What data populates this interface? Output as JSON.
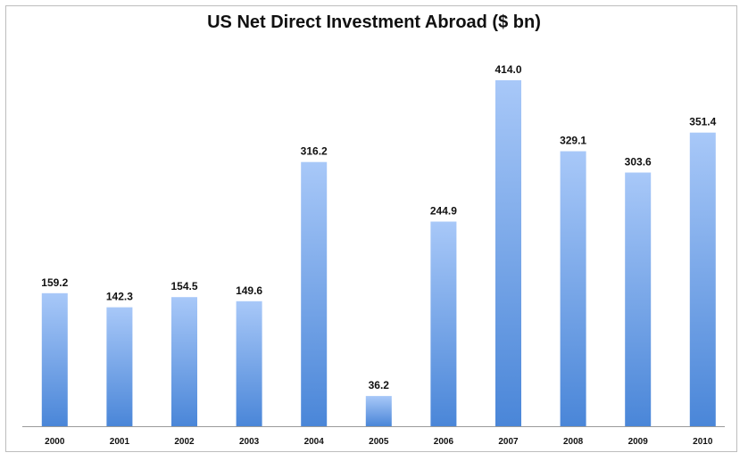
{
  "chart_data": {
    "type": "bar",
    "title": "US Net Direct Investment Abroad ($ bn)",
    "xlabel": "",
    "ylabel": "",
    "categories": [
      "2000",
      "2001",
      "2002",
      "2003",
      "2004",
      "2005",
      "2006",
      "2007",
      "2008",
      "2009",
      "2010"
    ],
    "values": [
      159.2,
      142.3,
      154.5,
      149.6,
      316.2,
      36.2,
      244.9,
      414.0,
      329.1,
      303.6,
      351.4
    ],
    "value_labels": [
      "159.2",
      "142.3",
      "154.5",
      "149.6",
      "316.2",
      "36.2",
      "244.9",
      "414.0",
      "329.1",
      "303.6",
      "351.4"
    ],
    "ylim": [
      0,
      414.0
    ],
    "grid": false,
    "legend": "none",
    "colors": {
      "bar_top": "#a8c8f8",
      "bar_bottom": "#4a86d8",
      "axis": "#9a9a9a"
    }
  }
}
